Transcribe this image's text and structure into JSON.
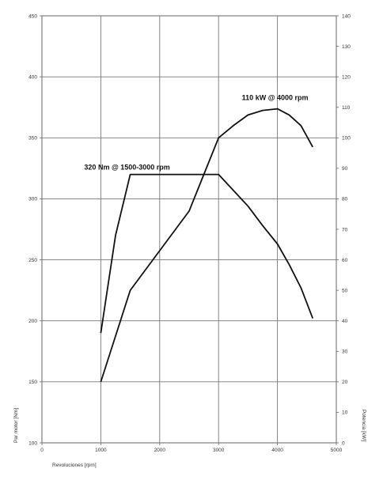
{
  "chart_data": {
    "type": "line",
    "x_axis": {
      "label": "Revoluciones [rpm]",
      "range": [
        0,
        5000
      ],
      "ticks": [
        0,
        1000,
        2000,
        3000,
        4000,
        5000
      ]
    },
    "y_axis_left": {
      "label": "Par motor [Nm]",
      "range": [
        100,
        450
      ],
      "ticks": [
        100,
        150,
        200,
        250,
        300,
        350,
        400,
        450
      ]
    },
    "y_axis_right": {
      "label": "Potencia [kW]",
      "range": [
        0,
        140
      ],
      "ticks": [
        0,
        10,
        20,
        30,
        40,
        50,
        60,
        70,
        80,
        90,
        100,
        110,
        120,
        130,
        140
      ]
    },
    "grid": true,
    "series": [
      {
        "axis": "left",
        "color": "#111111",
        "points": [
          [
            1000,
            190
          ],
          [
            1250,
            270
          ],
          [
            1500,
            320
          ],
          [
            2000,
            320
          ],
          [
            2500,
            320
          ],
          [
            3000,
            320
          ],
          [
            3250,
            307
          ],
          [
            3500,
            294
          ],
          [
            3750,
            278
          ],
          [
            4000,
            263
          ],
          [
            4200,
            246
          ],
          [
            4400,
            227
          ],
          [
            4600,
            202
          ]
        ]
      },
      {
        "axis": "right",
        "color": "#111111",
        "points": [
          [
            1000,
            20
          ],
          [
            1500,
            50
          ],
          [
            2000,
            63
          ],
          [
            2500,
            76
          ],
          [
            3000,
            100
          ],
          [
            3250,
            104
          ],
          [
            3500,
            107.5
          ],
          [
            3750,
            109
          ],
          [
            4000,
            109.5
          ],
          [
            4200,
            107.5
          ],
          [
            4400,
            104
          ],
          [
            4600,
            97
          ]
        ]
      }
    ],
    "annotations": [
      {
        "text": "320 Nm @ 1500-3000 rpm",
        "x": 1500,
        "y": 320,
        "axis": "left"
      },
      {
        "text": "110 kW @ 4000 rpm",
        "x": 4000,
        "y": 110,
        "axis": "right"
      }
    ]
  }
}
